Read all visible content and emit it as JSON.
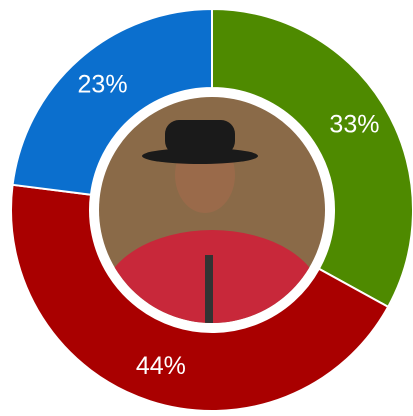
{
  "chart_data": {
    "type": "donut",
    "values": [
      33,
      44,
      23
    ],
    "value_labels": [
      "33%",
      "44%",
      "23%"
    ],
    "colors": [
      "#4e8a00",
      "#a90000",
      "#0b6fce"
    ]
  }
}
